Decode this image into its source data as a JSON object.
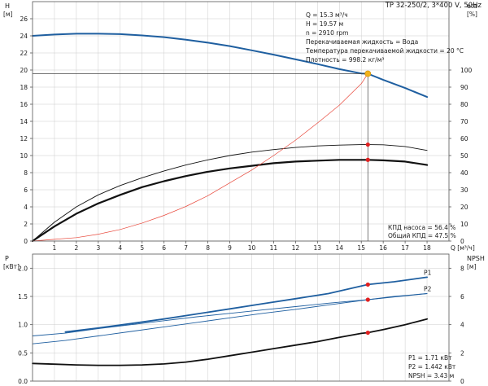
{
  "header": {
    "title": "TP 32-250/2, 3*400 V, 50Hz"
  },
  "info_box": {
    "lines": [
      "Q = 15.3 м³/ч",
      "H = 19.57 м",
      "n = 2910 rpm",
      "Перекачиваемая жидкость = Вода",
      "Температура перекачиваемой жидкости = 20 °C",
      "Плотность = 998.2 кг/м³"
    ]
  },
  "efficiency_box": {
    "lines": [
      "КПД насоса = 56.4 %",
      "Общий КПД = 47.5 %"
    ]
  },
  "power_box": {
    "lines": [
      "P1 = 1.71 кВт",
      "P2 = 1.442 кВт",
      "NPSH = 3.43 м"
    ]
  },
  "colors": {
    "head_curve": "#1f5fa0",
    "power_curve": "#1f5fa0",
    "efficiency_curve": "#111111",
    "system_curve": "#e8473a",
    "duty_point": "#f2b21a",
    "marker": "#e02020",
    "grid": "#cccccc",
    "frame": "#555555"
  },
  "chart_data": [
    {
      "type": "line",
      "panel": "upper",
      "xlabel": "Q [м³/ч]",
      "ylabel": "H [м]",
      "y2label": "eta [%]",
      "xlim": [
        0,
        19
      ],
      "ylim": [
        0,
        28
      ],
      "y2lim": [
        0,
        140
      ],
      "x_ticks": [
        "1",
        "2",
        "3",
        "4",
        "5",
        "6",
        "7",
        "8",
        "9",
        "10",
        "11",
        "12",
        "13",
        "14",
        "15",
        "16",
        "17",
        "18"
      ],
      "y_ticks": [
        "0",
        "2",
        "4",
        "6",
        "8",
        "10",
        "12",
        "14",
        "16",
        "18",
        "20",
        "22",
        "24",
        "26"
      ],
      "y2_ticks": [
        "0",
        "10",
        "20",
        "30",
        "40",
        "50",
        "60",
        "70",
        "80",
        "90",
        "100"
      ],
      "grid": true,
      "series": [
        {
          "axis": "left",
          "style": "head",
          "x": [
            0,
            1,
            2,
            3,
            4,
            5,
            6,
            7,
            8,
            9,
            10,
            11,
            12,
            13,
            14,
            15,
            15.3,
            16,
            17,
            18
          ],
          "y": [
            24.0,
            24.15,
            24.25,
            24.25,
            24.2,
            24.05,
            23.85,
            23.55,
            23.2,
            22.8,
            22.3,
            21.8,
            21.25,
            20.7,
            20.1,
            19.6,
            19.57,
            18.85,
            17.9,
            16.85
          ]
        },
        {
          "axis": "right",
          "style": "eta-total",
          "x": [
            0,
            1,
            2,
            3,
            4,
            5,
            6,
            7,
            8,
            9,
            10,
            11,
            12,
            13,
            14,
            15,
            15.3,
            16,
            17,
            18
          ],
          "y": [
            0,
            8.5,
            16,
            22,
            27,
            31.5,
            35,
            38,
            40.5,
            42.5,
            44,
            45.5,
            46.5,
            47,
            47.5,
            47.5,
            47.5,
            47.2,
            46.5,
            44.5
          ]
        },
        {
          "axis": "right",
          "style": "eta-pump",
          "x": [
            0,
            1,
            2,
            3,
            4,
            5,
            6,
            7,
            8,
            9,
            10,
            11,
            12,
            13,
            14,
            15,
            15.3,
            16,
            17,
            18
          ],
          "y": [
            0,
            11,
            20,
            27,
            32.5,
            37,
            41,
            44.5,
            47.5,
            50,
            52,
            53.5,
            54.7,
            55.6,
            56.1,
            56.4,
            56.4,
            56.3,
            55.3,
            53
          ]
        },
        {
          "axis": "left",
          "style": "system",
          "x": [
            0,
            1,
            2,
            3,
            4,
            5,
            6,
            7,
            8,
            9,
            10,
            11,
            12,
            13,
            14,
            15,
            15.3
          ],
          "y": [
            0,
            0.2,
            0.4,
            0.8,
            1.35,
            2.1,
            3.0,
            4.05,
            5.3,
            6.8,
            8.3,
            10.0,
            11.8,
            13.8,
            15.9,
            18.4,
            19.57
          ]
        }
      ],
      "markers": [
        {
          "x": 15.3,
          "y": 19.57,
          "axis": "left",
          "kind": "duty"
        },
        {
          "x": 15.3,
          "y": 56.4,
          "axis": "right",
          "kind": "point"
        },
        {
          "x": 15.3,
          "y": 47.5,
          "axis": "right",
          "kind": "point"
        }
      ]
    },
    {
      "type": "line",
      "panel": "lower",
      "ylabel": "P [кВт]",
      "y2label": "NPSH [м]",
      "xlim": [
        0,
        19
      ],
      "ylim": [
        0,
        2.25
      ],
      "y2lim": [
        0,
        9
      ],
      "y_ticks": [
        "0.0",
        "0.5",
        "1.0",
        "1.5",
        "2.0"
      ],
      "y2_ticks": [
        "0",
        "2",
        "4",
        "6",
        "8"
      ],
      "grid": true,
      "series": [
        {
          "name": "P1",
          "axis": "left",
          "style": "P1",
          "x": [
            1.5,
            3,
            4.5,
            6,
            7.5,
            9,
            10.5,
            12,
            13.5,
            15.3,
            16.5,
            18
          ],
          "y": [
            0.87,
            0.94,
            1.02,
            1.1,
            1.19,
            1.28,
            1.37,
            1.46,
            1.55,
            1.71,
            1.76,
            1.84
          ]
        },
        {
          "name": "P2",
          "axis": "left",
          "style": "P2",
          "x": [
            0,
            1.5,
            3,
            4.5,
            6,
            7.5,
            9,
            10.5,
            12,
            13.5,
            15.3,
            16.5,
            18
          ],
          "y": [
            0.8,
            0.85,
            0.93,
            1.0,
            1.07,
            1.14,
            1.2,
            1.26,
            1.32,
            1.38,
            1.442,
            1.5,
            1.55
          ]
        },
        {
          "axis": "left",
          "style": "P2-left",
          "x": [
            0,
            1.5,
            3,
            4.5,
            6,
            7.5,
            9,
            10.5,
            12,
            13.5,
            15.3,
            16.5,
            18
          ],
          "y": [
            0.66,
            0.72,
            0.8,
            0.88,
            0.96,
            1.04,
            1.12,
            1.2,
            1.27,
            1.35,
            1.442,
            1.49,
            1.55
          ]
        },
        {
          "axis": "right",
          "style": "npsh",
          "x": [
            0,
            1,
            2,
            3,
            4,
            5,
            6,
            7,
            8,
            9,
            10,
            11,
            12,
            13,
            14,
            15,
            15.3,
            16,
            17,
            18
          ],
          "y": [
            1.25,
            1.2,
            1.15,
            1.12,
            1.12,
            1.15,
            1.22,
            1.35,
            1.55,
            1.8,
            2.05,
            2.3,
            2.55,
            2.8,
            3.1,
            3.38,
            3.43,
            3.65,
            4.0,
            4.4
          ]
        }
      ],
      "markers": [
        {
          "x": 15.3,
          "y": 1.71,
          "axis": "left",
          "kind": "point"
        },
        {
          "x": 15.3,
          "y": 1.442,
          "axis": "left",
          "kind": "point"
        },
        {
          "x": 15.3,
          "y": 3.43,
          "axis": "right",
          "kind": "point"
        }
      ]
    }
  ]
}
